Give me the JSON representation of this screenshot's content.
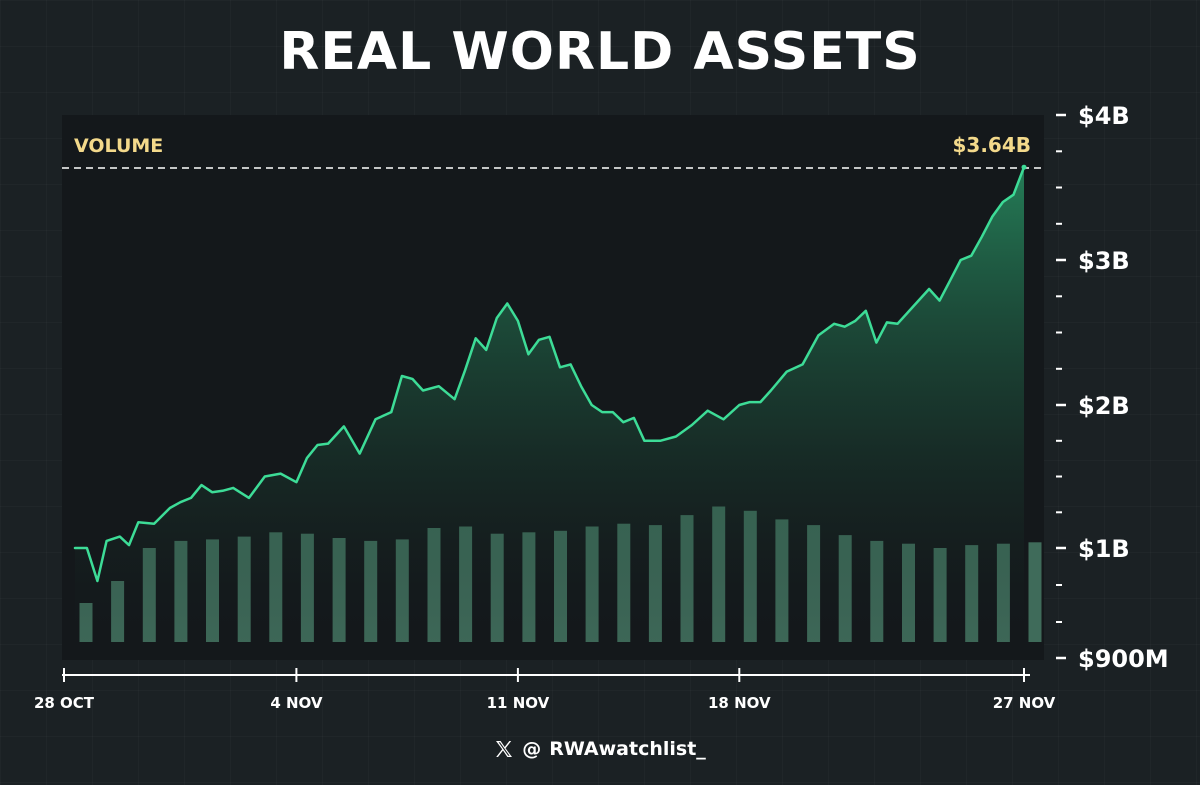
{
  "title": "REAL WORLD ASSETS",
  "volume_label": "VOLUME",
  "current_value_label": "$3.64B",
  "handle_prefix": "@",
  "handle": "RWAwatchlist_",
  "colors": {
    "line": "#3ddc97",
    "area_top": "#2a9e6b",
    "bars": "#3f6b5a",
    "label": "#f3d98b",
    "plot_bg": "#14181b"
  },
  "chart_data": {
    "type": "area",
    "title": "REAL WORLD ASSETS",
    "x_ticks": [
      "28 OCT",
      "4 NOV",
      "11 NOV",
      "18 NOV",
      "27 NOV"
    ],
    "y_ticks": [
      "$4B",
      "$3B",
      "$2B",
      "$1B",
      "$900M"
    ],
    "y_tick_values": [
      4.0,
      3.0,
      2.0,
      1.0,
      0.9
    ],
    "y_unit": "billions USD",
    "last_value": 3.64,
    "x_range": [
      "2024-10-28",
      "2024-11-27"
    ],
    "grid": false,
    "series": [
      {
        "name": "",
        "type": "line",
        "x": [
          "2024-10-28",
          "2024-10-28T09:00",
          "2024-10-28T17:00",
          "2024-10-29",
          "2024-10-29T10:00",
          "2024-10-29T17:00",
          "2024-10-30",
          "2024-10-30T12:00",
          "2024-10-31",
          "2024-10-31T08:00",
          "2024-10-31T16:00",
          "2024-11-01",
          "2024-11-01T08:00",
          "2024-11-01T16:00",
          "2024-11-02",
          "2024-11-02T12:00",
          "2024-11-03",
          "2024-11-03T12:00",
          "2024-11-04",
          "2024-11-04T08:00",
          "2024-11-04T16:00",
          "2024-11-05",
          "2024-11-05T12:00",
          "2024-11-06",
          "2024-11-06T12:00",
          "2024-11-07",
          "2024-11-07T08:00",
          "2024-11-07T16:00",
          "2024-11-08",
          "2024-11-08T12:00",
          "2024-11-09",
          "2024-11-09T08:00",
          "2024-11-09T16:00",
          "2024-11-10",
          "2024-11-10T08:00",
          "2024-11-10T16:00",
          "2024-11-11",
          "2024-11-11T08:00",
          "2024-11-11T16:00",
          "2024-11-12",
          "2024-11-12T08:00",
          "2024-11-12T16:00",
          "2024-11-13",
          "2024-11-13T08:00",
          "2024-11-13T16:00",
          "2024-11-14",
          "2024-11-14T08:00",
          "2024-11-14T16:00",
          "2024-11-15",
          "2024-11-15T12:00",
          "2024-11-16",
          "2024-11-16T12:00",
          "2024-11-17",
          "2024-11-17T12:00",
          "2024-11-18",
          "2024-11-18T08:00",
          "2024-11-18T16:00",
          "2024-11-19",
          "2024-11-19T12:00",
          "2024-11-20",
          "2024-11-20T12:00",
          "2024-11-21",
          "2024-11-21T08:00",
          "2024-11-21T16:00",
          "2024-11-22",
          "2024-11-22T08:00",
          "2024-11-22T16:00",
          "2024-11-23",
          "2024-11-23T12:00",
          "2024-11-24",
          "2024-11-24T08:00",
          "2024-11-24T16:00",
          "2024-11-25",
          "2024-11-25T08:00",
          "2024-11-25T16:00",
          "2024-11-26",
          "2024-11-26T08:00",
          "2024-11-26T16:00",
          "2024-11-27"
        ],
        "values": [
          1.0,
          1.0,
          0.97,
          1.05,
          1.08,
          1.02,
          1.18,
          1.17,
          1.28,
          1.32,
          1.35,
          1.44,
          1.39,
          1.4,
          1.42,
          1.35,
          1.5,
          1.52,
          1.46,
          1.63,
          1.72,
          1.73,
          1.85,
          1.66,
          1.9,
          1.95,
          2.2,
          2.18,
          2.1,
          2.13,
          2.04,
          2.24,
          2.46,
          2.38,
          2.6,
          2.7,
          2.58,
          2.35,
          2.45,
          2.47,
          2.26,
          2.28,
          2.13,
          2.0,
          1.95,
          1.95,
          1.88,
          1.91,
          1.75,
          1.75,
          1.78,
          1.86,
          1.96,
          1.9,
          2.0,
          2.02,
          2.02,
          2.1,
          2.23,
          2.28,
          2.48,
          2.56,
          2.54,
          2.58,
          2.65,
          2.43,
          2.57,
          2.56,
          2.68,
          2.8,
          2.72,
          2.86,
          3.0,
          3.03,
          3.16,
          3.3,
          3.4,
          3.45,
          3.64
        ]
      },
      {
        "name": "VOLUME",
        "type": "bar",
        "x": [
          "2024-10-28",
          "2024-10-29",
          "2024-10-30",
          "2024-10-31",
          "2024-11-01",
          "2024-11-02",
          "2024-11-03",
          "2024-11-04",
          "2024-11-05",
          "2024-11-06",
          "2024-11-07",
          "2024-11-08",
          "2024-11-09",
          "2024-11-10",
          "2024-11-11",
          "2024-11-12",
          "2024-11-13",
          "2024-11-14",
          "2024-11-15",
          "2024-11-16",
          "2024-11-17",
          "2024-11-18",
          "2024-11-19",
          "2024-11-20",
          "2024-11-21",
          "2024-11-22",
          "2024-11-23",
          "2024-11-24",
          "2024-11-25",
          "2024-11-26",
          "2024-11-27"
        ],
        "values": [
          0.95,
          0.97,
          1.0,
          1.05,
          1.06,
          1.08,
          1.11,
          1.1,
          1.07,
          1.05,
          1.06,
          1.14,
          1.15,
          1.1,
          1.11,
          1.12,
          1.15,
          1.17,
          1.16,
          1.23,
          1.29,
          1.26,
          1.2,
          1.16,
          1.09,
          1.05,
          1.03,
          1.0,
          1.02,
          1.03,
          1.04
        ]
      }
    ]
  }
}
